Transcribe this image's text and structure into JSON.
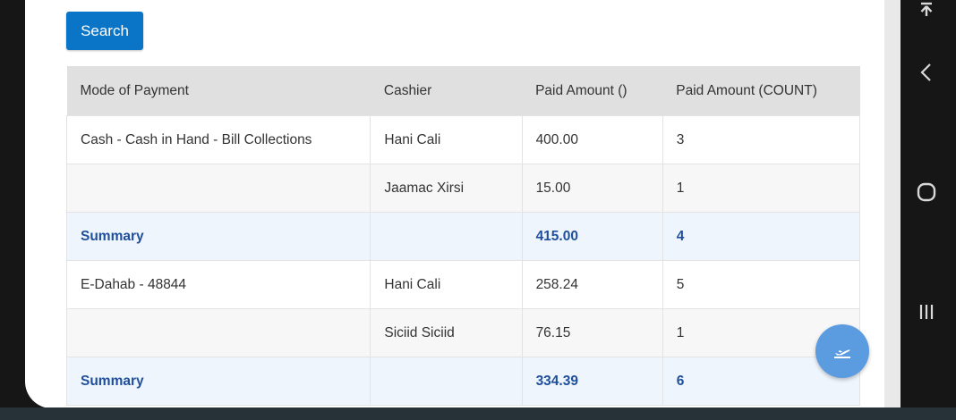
{
  "search": {
    "label": "Search"
  },
  "table": {
    "headers": [
      "Mode of Payment",
      "Cashier",
      "Paid Amount ()",
      "Paid Amount (COUNT)"
    ],
    "rows": [
      {
        "type": "data",
        "mode": "Cash - Cash in Hand - Bill Collections",
        "cashier": "Hani Cali",
        "amount": "400.00",
        "count": "3"
      },
      {
        "type": "data",
        "mode": "",
        "cashier": "Jaamac Xirsi",
        "amount": "15.00",
        "count": "1"
      },
      {
        "type": "summary",
        "mode": "Summary",
        "cashier": "",
        "amount": "415.00",
        "count": "4"
      },
      {
        "type": "data",
        "mode": "E-Dahab - 48844",
        "cashier": "Hani Cali",
        "amount": "258.24",
        "count": "5"
      },
      {
        "type": "data",
        "mode": "",
        "cashier": "Siciid Siciid",
        "amount": "76.15",
        "count": "1"
      },
      {
        "type": "summary",
        "mode": "Summary",
        "cashier": "",
        "amount": "334.39",
        "count": "6"
      }
    ]
  },
  "colors": {
    "accent": "#0a74c7",
    "summary_text": "#1f4f9c",
    "fab": "#5b9be0"
  },
  "nav": {
    "top": "pin-top-icon",
    "back": "back-chevron-icon",
    "home": "home-circle-icon",
    "recents": "recents-icon"
  },
  "fab": {
    "icon": "flight-takeoff-icon"
  }
}
